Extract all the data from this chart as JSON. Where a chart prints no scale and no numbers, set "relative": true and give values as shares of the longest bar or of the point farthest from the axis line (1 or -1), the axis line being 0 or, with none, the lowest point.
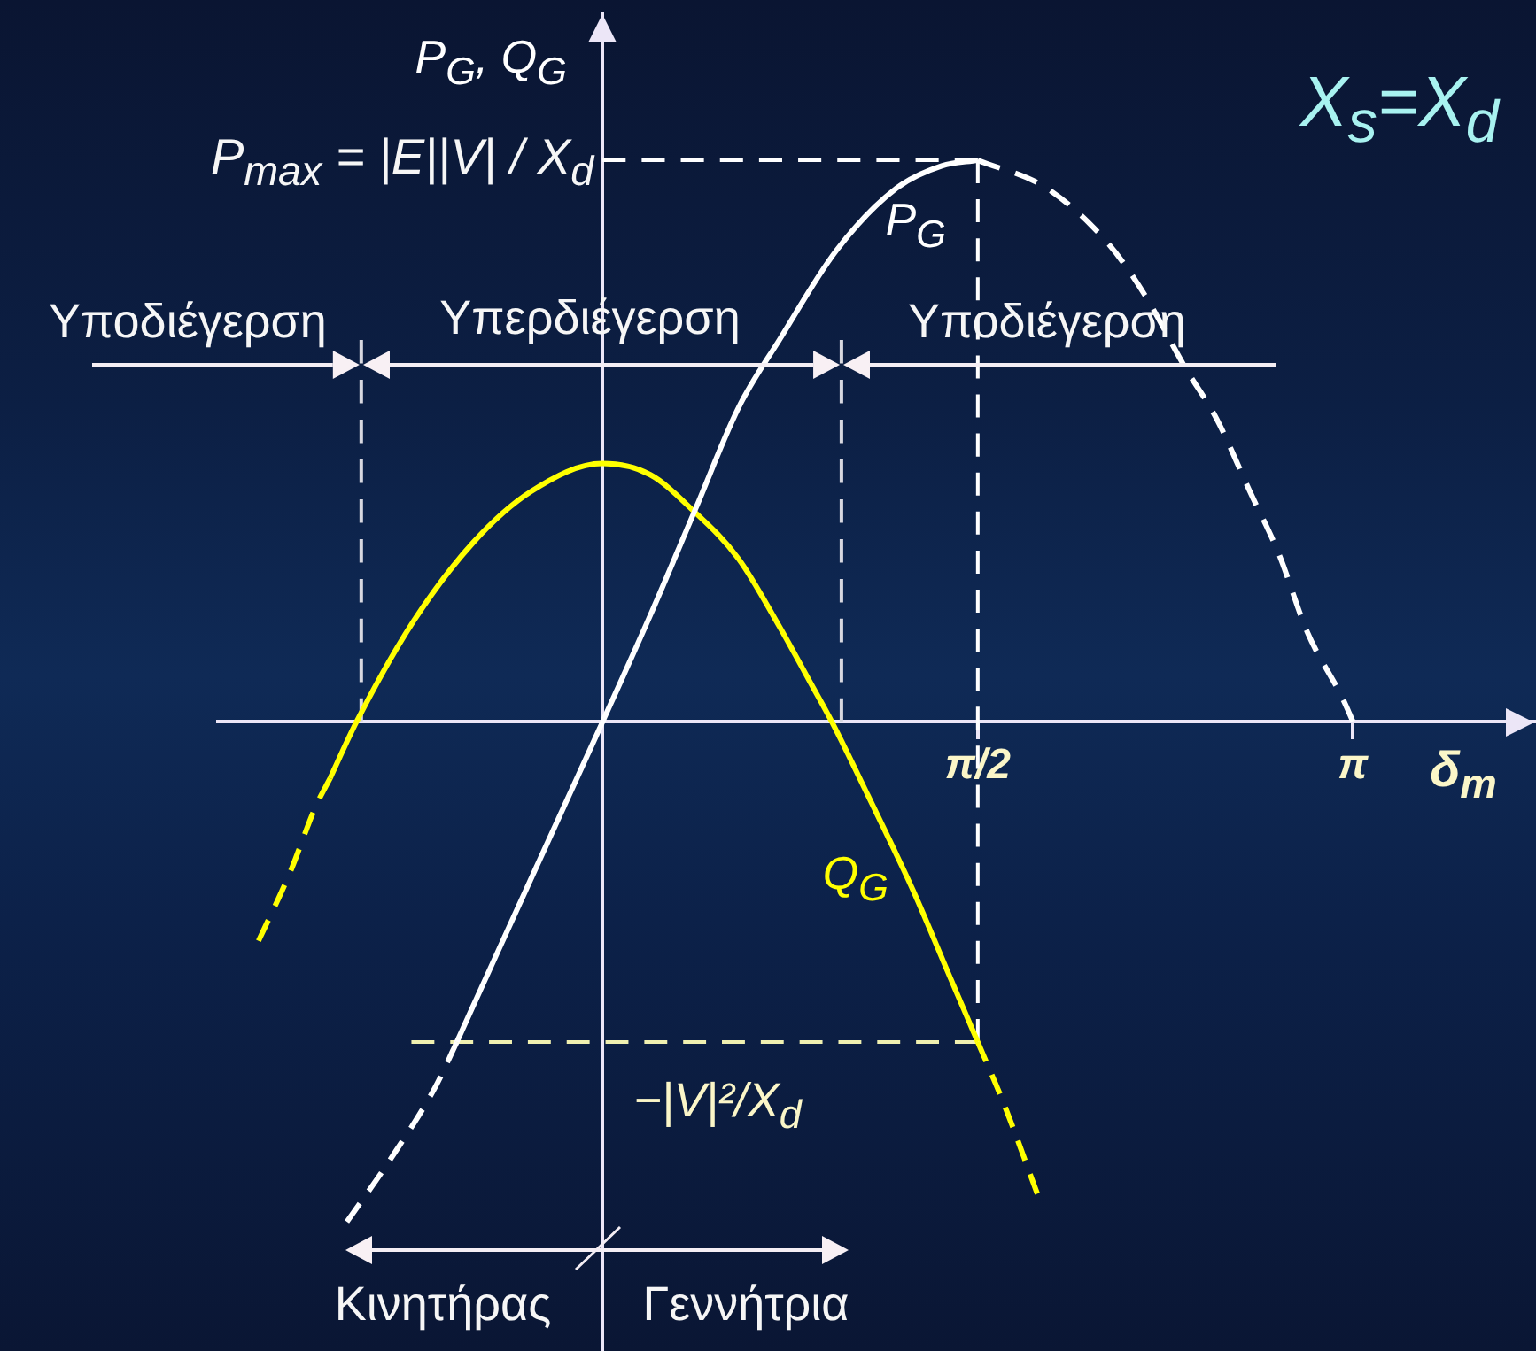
{
  "chart_data": {
    "type": "line",
    "relative": true,
    "ylabel": "P$_{G}$, Q$_{G}$",
    "xlabel": "δ$_{m}$",
    "xlim": [
      -1.61,
      3.9
    ],
    "xticks": [
      {
        "value": 1.5708,
        "label": "π/2"
      },
      {
        "value": 3.1416,
        "label": "π"
      }
    ],
    "tick_labels": "x",
    "grid": false,
    "legend": false,
    "marker": "none",
    "series": [
      {
        "name": "P$_{G}$",
        "color": "#ffffff",
        "line_style": "solid",
        "x": [
          -0.61,
          -0.45,
          -0.3,
          -0.15,
          0,
          0.2,
          0.39,
          0.57,
          0.74,
          0.98,
          1.23,
          1.42,
          1.5708
        ],
        "values": [
          -0.57,
          -0.42,
          -0.28,
          -0.14,
          0,
          0.19,
          0.38,
          0.56,
          0.68,
          0.84,
          0.95,
          0.99,
          1
        ]
      },
      {
        "color": "#ffffff",
        "line_style": "dashed",
        "x": [
          -1.07,
          -0.89,
          -0.7,
          -0.61
        ],
        "values": [
          -0.89,
          -0.78,
          -0.65,
          -0.57
        ]
      },
      {
        "color": "#ffffff",
        "line_style": "dashed",
        "x": [
          1.5708,
          1.86,
          2.12,
          2.27,
          2.44,
          2.57,
          2.71,
          2.83,
          2.95,
          3.1,
          3.1416
        ],
        "values": [
          1,
          0.95,
          0.85,
          0.76,
          0.63,
          0.54,
          0.41,
          0.3,
          0.16,
          0.04,
          0
        ]
      },
      {
        "name": "Q$_{G}$",
        "color": "#ffff00",
        "line_style": "solid",
        "x": [
          -1.14,
          -1.03,
          -0.79,
          -0.54,
          -0.3,
          0,
          0.2,
          0.37,
          0.57,
          0.74,
          0.87,
          0.96,
          1.11,
          1.3,
          1.45,
          1.5708
        ],
        "values": [
          -0.1,
          0,
          0.18,
          0.32,
          0.41,
          0.46,
          0.44,
          0.38,
          0.29,
          0.17,
          0.07,
          0,
          -0.13,
          -0.3,
          -0.45,
          -0.57
        ]
      },
      {
        "color": "#ffff00",
        "line_style": "dashed",
        "x": [
          -1.44,
          -1.31,
          -1.2,
          -1.14
        ],
        "values": [
          -0.39,
          -0.27,
          -0.15,
          -0.1
        ]
      },
      {
        "color": "#ffff00",
        "line_style": "dashed",
        "x": [
          1.5708,
          1.68,
          1.82
        ],
        "values": [
          -0.57,
          -0.68,
          -0.84
        ]
      },
      {
        "color": "#ffffff",
        "line_style": "dashed",
        "x": [
          0,
          1.5708
        ],
        "values": [
          1,
          1
        ]
      },
      {
        "color": "#ffffff",
        "line_style": "dashed",
        "x": [
          1.5708,
          1.5708
        ],
        "values": [
          1,
          -0.57
        ]
      },
      {
        "color": "#f0f0b0",
        "line_style": "dashed",
        "x": [
          -0.8,
          1.5708
        ],
        "values": [
          -0.57,
          -0.57
        ]
      },
      {
        "color": "#d8d8e0",
        "line_style": "dashed",
        "x": [
          -1.01,
          -1.01
        ],
        "values": [
          0,
          0.68
        ]
      },
      {
        "color": "#d8d8e0",
        "line_style": "dashed",
        "x": [
          1,
          1
        ],
        "values": [
          0,
          0.68
        ]
      }
    ],
    "annotations": [
      "X$_{s}$=X$_{d}$",
      "P$_{max}$ = |E||V| / X$_{d}$",
      "Υποδιέγερση",
      "Υπερδιέγερση",
      "Υποδιέγερση",
      "−|V|²/X$_{d}$",
      "Κινητήρας",
      "Γεννήτρια"
    ]
  }
}
